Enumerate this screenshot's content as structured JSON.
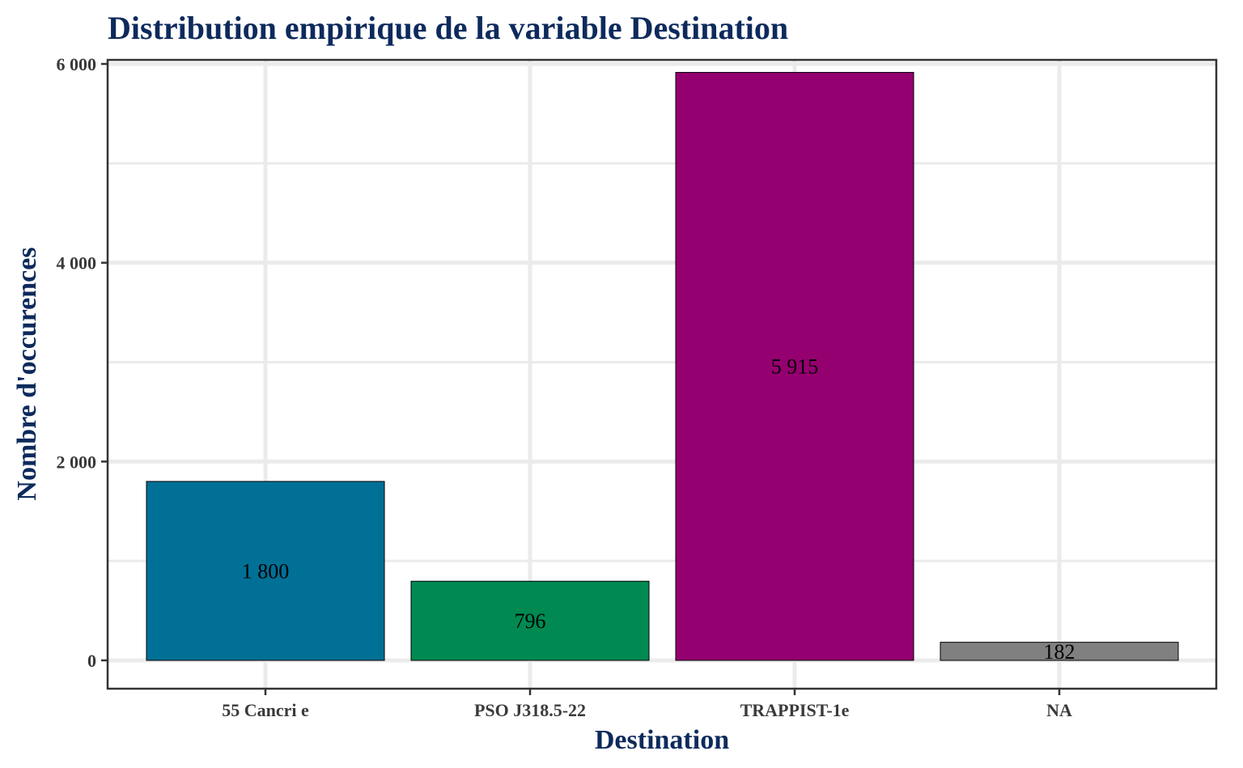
{
  "chart_data": {
    "type": "bar",
    "title": "Distribution empirique de la variable Destination",
    "xlabel": "Destination",
    "ylabel": "Nombre d'occurences",
    "categories": [
      "55 Cancri e",
      "PSO J318.5-22",
      "TRAPPIST-1e",
      "NA"
    ],
    "values": [
      1800,
      796,
      5915,
      182
    ],
    "value_labels": [
      "1 800",
      "796",
      "5 915",
      "182"
    ],
    "colors": [
      "#017096",
      "#008A52",
      "#950070",
      "#808080"
    ],
    "yticks": [
      0,
      2000,
      4000,
      6000
    ],
    "ytick_labels": [
      "0",
      "2 000",
      "4 000",
      "6 000"
    ],
    "ylim": [
      -280,
      6210
    ],
    "grid": true,
    "legend": "none"
  }
}
